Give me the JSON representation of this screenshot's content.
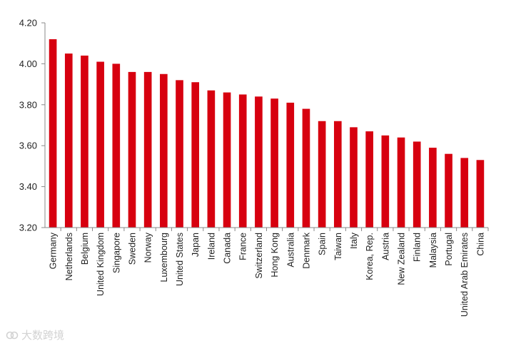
{
  "chart_data": {
    "type": "bar",
    "title": "",
    "xlabel": "",
    "ylabel": "",
    "ylim": [
      3.2,
      4.2
    ],
    "yticks": [
      "3.20",
      "3.40",
      "3.60",
      "3.80",
      "4.00",
      "4.20"
    ],
    "grid": false,
    "bar_color": "#d7000f",
    "categories": [
      "Germany",
      "Netherlands",
      "Belgium",
      "United Kingdom",
      "Singapore",
      "Sweden",
      "Norway",
      "Luxembourg",
      "United States",
      "Japan",
      "Ireland",
      "Canada",
      "France",
      "Switzerland",
      "Hong Kong",
      "Australia",
      "Denmark",
      "Spain",
      "Taiwan",
      "Italy",
      "Korea, Rep.",
      "Austria",
      "New Zealand",
      "Finland",
      "Malaysia",
      "Portugal",
      "United Arab Emirates",
      "China"
    ],
    "values": [
      4.12,
      4.05,
      4.04,
      4.01,
      4.0,
      3.96,
      3.96,
      3.95,
      3.92,
      3.91,
      3.87,
      3.86,
      3.85,
      3.84,
      3.83,
      3.81,
      3.78,
      3.72,
      3.72,
      3.69,
      3.67,
      3.65,
      3.64,
      3.62,
      3.59,
      3.56,
      3.54,
      3.53
    ]
  },
  "watermark": {
    "text": "大数跨境",
    "icon": "chain-link-icon"
  }
}
